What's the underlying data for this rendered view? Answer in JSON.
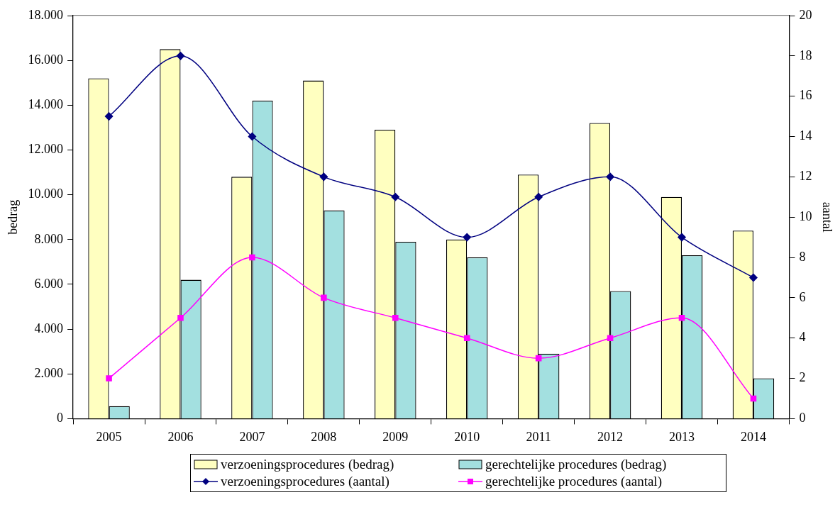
{
  "chart_data": {
    "type": "bar",
    "ylabel": "bedrag",
    "y2label": "aantal",
    "categories": [
      "2005",
      "2006",
      "2007",
      "2008",
      "2009",
      "2010",
      "2011",
      "2012",
      "2013",
      "2014"
    ],
    "series": [
      {
        "name": "verzoeningsprocedures (bedrag)",
        "color": "#ffffc0",
        "values": [
          15200,
          16500,
          10800,
          15100,
          12900,
          8000,
          10900,
          13200,
          9900,
          8400
        ]
      },
      {
        "name": "gerechtelijke procedures (bedrag)",
        "color": "#a3e0e0",
        "values": [
          560,
          6200,
          14200,
          9300,
          7900,
          7200,
          2900,
          5700,
          7300,
          1800
        ]
      },
      {
        "name": "verzoeningsprocedures (aantal)",
        "type": "line",
        "axis": "y2",
        "marker": "diamond",
        "color": "#000080",
        "values": [
          15,
          18,
          14,
          12,
          11,
          9,
          11,
          12,
          9,
          7
        ]
      },
      {
        "name": "gerechtelijke procedures (aantal)",
        "type": "line",
        "axis": "y2",
        "marker": "square",
        "color": "#ff00ff",
        "values": [
          2,
          5,
          8,
          6,
          5,
          4,
          3,
          4,
          5,
          1
        ]
      }
    ],
    "ylim": [
      0,
      18000
    ],
    "yticks": [
      {
        "value": 0,
        "label": "0"
      },
      {
        "value": 2000,
        "label": "2.000"
      },
      {
        "value": 4000,
        "label": "4.000"
      },
      {
        "value": 6000,
        "label": "6.000"
      },
      {
        "value": 8000,
        "label": "8.000"
      },
      {
        "value": 10000,
        "label": "10.000"
      },
      {
        "value": 12000,
        "label": "12.000"
      },
      {
        "value": 14000,
        "label": "14.000"
      },
      {
        "value": 16000,
        "label": "16.000"
      },
      {
        "value": 18000,
        "label": "18.000"
      }
    ],
    "y2lim": [
      0,
      20
    ],
    "y2ticks": [
      0,
      2,
      4,
      6,
      8,
      10,
      12,
      14,
      16,
      18,
      20
    ],
    "grid": false,
    "legend": "bottom"
  }
}
